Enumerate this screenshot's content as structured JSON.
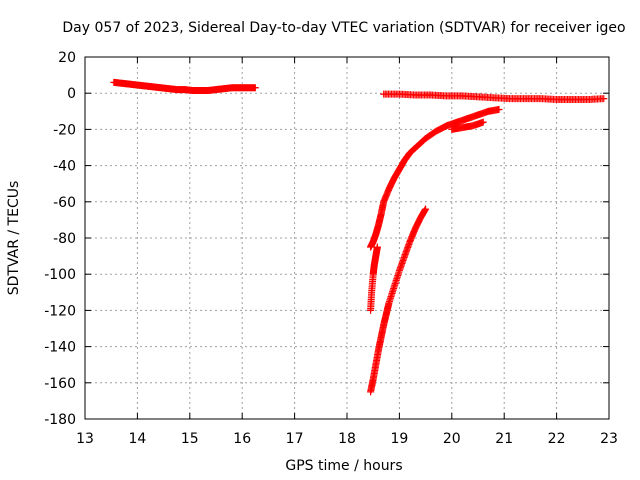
{
  "chart_data": {
    "type": "scatter",
    "title": "Day 057 of 2023, Sidereal Day-to-day VTEC variation (SDTVAR) for receiver igeo",
    "xlabel": "GPS time / hours",
    "ylabel": "SDTVAR / TECUs",
    "xlim": [
      13,
      23
    ],
    "ylim": [
      -180,
      20
    ],
    "xticks": [
      13,
      14,
      15,
      16,
      17,
      18,
      19,
      20,
      21,
      22,
      23
    ],
    "yticks": [
      20,
      0,
      -20,
      -40,
      -60,
      -80,
      -100,
      -120,
      -140,
      -160,
      -180
    ],
    "grid": true,
    "marker": "plus",
    "color": "#ff0000",
    "series": [
      {
        "x": [
          13.55,
          13.7,
          13.85,
          14.0,
          14.15,
          14.3,
          14.45,
          14.6,
          14.75,
          14.9,
          15.05,
          15.2,
          15.35,
          15.5,
          15.65,
          15.8,
          15.95,
          16.1,
          16.25
        ],
        "y": [
          6,
          5.5,
          5,
          4.5,
          4,
          3.5,
          3,
          2.5,
          2,
          2,
          1.5,
          1.5,
          1.5,
          2,
          2.5,
          3,
          3,
          3,
          3
        ]
      },
      {
        "x": [
          18.7,
          19.0,
          19.3,
          19.6,
          19.9,
          20.2,
          20.5,
          20.8,
          21.1,
          21.4,
          21.7,
          22.0,
          22.3,
          22.6,
          22.9
        ],
        "y": [
          -0.5,
          -0.5,
          -1,
          -1,
          -1.5,
          -1.5,
          -2,
          -2.5,
          -3,
          -3,
          -3,
          -3.5,
          -3.5,
          -3.5,
          -3
        ]
      },
      {
        "x": [
          18.45,
          18.5,
          18.55,
          18.6,
          18.65,
          18.7,
          18.8,
          18.9,
          19.0,
          19.1,
          19.2,
          19.35,
          19.5,
          19.7,
          19.9,
          20.1,
          20.3,
          20.5,
          20.7,
          20.9
        ],
        "y": [
          -85,
          -82,
          -78,
          -73,
          -67,
          -60,
          -53,
          -47,
          -42,
          -37,
          -33,
          -29,
          -25,
          -21,
          -18,
          -16,
          -14,
          -12,
          -10,
          -9
        ]
      },
      {
        "x": [
          18.45,
          18.47,
          18.5,
          18.52,
          18.55,
          18.58
        ],
        "y": [
          -120,
          -110,
          -100,
          -95,
          -90,
          -85
        ]
      },
      {
        "x": [
          18.45,
          18.5,
          18.55,
          18.6,
          18.65,
          18.7,
          18.75,
          18.8,
          18.9,
          19.0,
          19.1,
          19.2,
          19.3,
          19.4,
          19.5
        ],
        "y": [
          -165,
          -158,
          -150,
          -142,
          -135,
          -128,
          -122,
          -116,
          -107,
          -98,
          -90,
          -82,
          -75,
          -69,
          -64
        ]
      },
      {
        "x": [
          20.0,
          20.2,
          20.4,
          20.6
        ],
        "y": [
          -20,
          -19,
          -18,
          -16
        ]
      }
    ]
  }
}
